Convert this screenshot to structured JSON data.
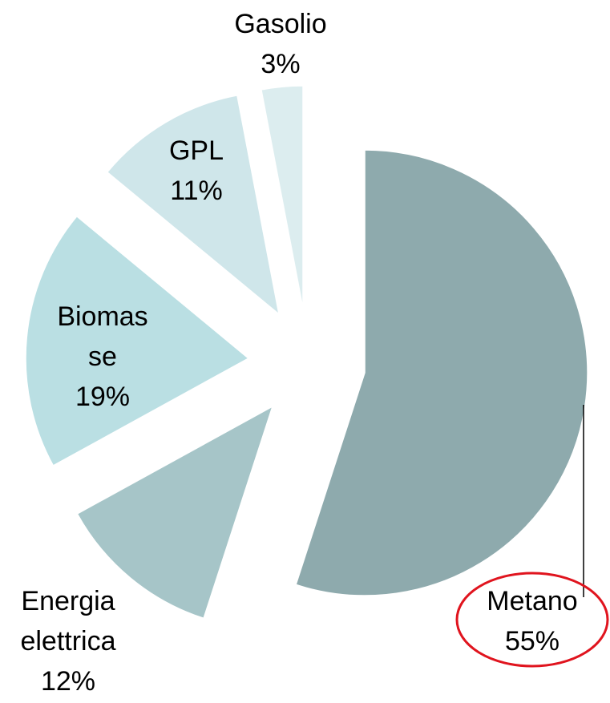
{
  "chart_data": {
    "type": "pie",
    "categories": [
      "Metano",
      "Energia elettrica",
      "Biomasse",
      "GPL",
      "Gasolio"
    ],
    "values": [
      55,
      12,
      19,
      11,
      3
    ],
    "value_labels": [
      "55%",
      "12%",
      "19%",
      "11%",
      "3%"
    ],
    "colors": [
      "#8eaaad",
      "#a6c5c8",
      "#badfe3",
      "#cfe6ea",
      "#dcedef"
    ]
  }
}
